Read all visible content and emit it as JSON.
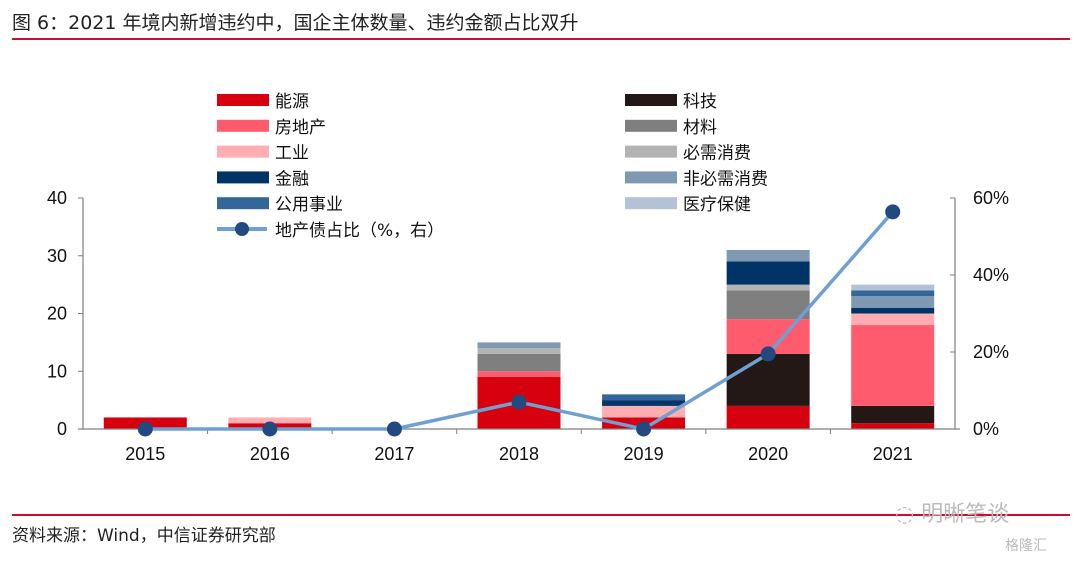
{
  "header": {
    "title": "图 6：2021 年境内新增违约中，国企主体数量、违约金额占比双升"
  },
  "footer": {
    "source": "资料来源：Wind，中信证券研究部",
    "watermark": "明晰笔谈",
    "watermark2": "格隆汇"
  },
  "chart_data": {
    "type": "bar",
    "stacked": true,
    "title": "2021 年境内新增违约中，国企主体数量、违约金额占比双升",
    "xlabel": "",
    "ylabel": "",
    "categories": [
      "2015",
      "2016",
      "2017",
      "2018",
      "2019",
      "2020",
      "2021"
    ],
    "ylim": [
      0,
      40
    ],
    "yticks": [
      "0",
      "10",
      "20",
      "30",
      "40"
    ],
    "y2lim": [
      0,
      60
    ],
    "y2ticks": [
      "0%",
      "20%",
      "40%",
      "60%"
    ],
    "series": [
      {
        "name": "能源",
        "color": "#d7000f",
        "values": [
          2,
          1,
          0,
          9,
          2,
          4,
          1
        ]
      },
      {
        "name": "科技",
        "color": "#231815",
        "values": [
          0,
          0,
          0,
          0,
          0,
          9,
          3
        ]
      },
      {
        "name": "房地产",
        "color": "#ff5b6e",
        "values": [
          0,
          0,
          0,
          1,
          0,
          6,
          14
        ]
      },
      {
        "name": "材料",
        "color": "#7f7f7f",
        "values": [
          0,
          0,
          0,
          3,
          0,
          5,
          0
        ]
      },
      {
        "name": "工业",
        "color": "#ffadb0",
        "values": [
          0,
          1,
          0,
          0,
          2,
          0,
          2
        ]
      },
      {
        "name": "必需消费",
        "color": "#b3b3b3",
        "values": [
          0,
          0,
          0,
          1,
          0,
          1,
          0
        ]
      },
      {
        "name": "金融",
        "color": "#003366",
        "values": [
          0,
          0,
          0,
          0,
          1,
          4,
          1
        ]
      },
      {
        "name": "非必需消费",
        "color": "#7f99b2",
        "values": [
          0,
          0,
          0,
          1,
          0,
          2,
          2
        ]
      },
      {
        "name": "公用事业",
        "color": "#336699",
        "values": [
          0,
          0,
          0,
          0,
          1,
          0,
          1
        ]
      },
      {
        "name": "医疗保健",
        "color": "#b3c2d4",
        "values": [
          0,
          0,
          0,
          0,
          0,
          0,
          1
        ]
      }
    ],
    "line_series": {
      "name": "地产债占比（%，右）",
      "axis": "right",
      "color": "#6fa0d4",
      "marker_color": "#234a80",
      "values": [
        0,
        0,
        0,
        7,
        0,
        19.5,
        56.4
      ]
    },
    "legend": {
      "position": "top",
      "left_column": [
        "能源",
        "房地产",
        "工业",
        "金融",
        "公用事业",
        "地产债占比（%，右）"
      ],
      "right_column": [
        "科技",
        "材料",
        "必需消费",
        "非必需消费",
        "医疗保健"
      ]
    },
    "grid": false
  }
}
